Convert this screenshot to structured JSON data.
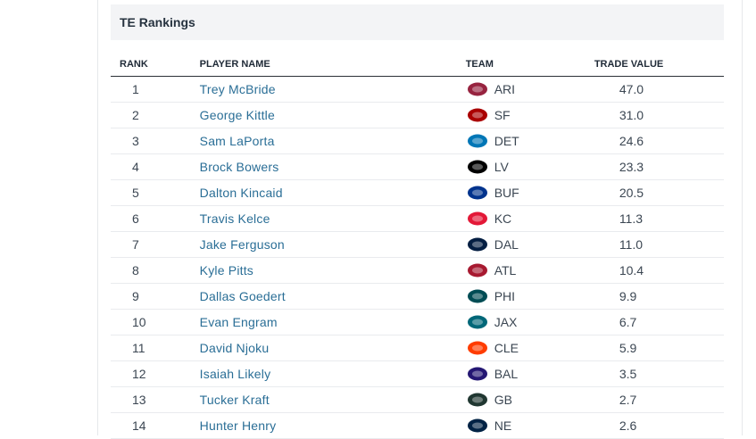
{
  "title": "TE Rankings",
  "columns": {
    "rank": "RANK",
    "player": "PLAYER NAME",
    "team": "TEAM",
    "value": "TRADE VALUE"
  },
  "rows": [
    {
      "rank": "1",
      "player": "Trey McBride",
      "team": "ARI",
      "value": "47.0",
      "logo": "cardinals-logo",
      "color": "#97233f"
    },
    {
      "rank": "2",
      "player": "George Kittle",
      "team": "SF",
      "value": "31.0",
      "logo": "49ers-logo",
      "color": "#aa0000"
    },
    {
      "rank": "3",
      "player": "Sam LaPorta",
      "team": "DET",
      "value": "24.6",
      "logo": "lions-logo",
      "color": "#0076b6"
    },
    {
      "rank": "4",
      "player": "Brock Bowers",
      "team": "LV",
      "value": "23.3",
      "logo": "raiders-logo",
      "color": "#000000"
    },
    {
      "rank": "5",
      "player": "Dalton Kincaid",
      "team": "BUF",
      "value": "20.5",
      "logo": "bills-logo",
      "color": "#00338d"
    },
    {
      "rank": "6",
      "player": "Travis Kelce",
      "team": "KC",
      "value": "11.3",
      "logo": "chiefs-logo",
      "color": "#e31837"
    },
    {
      "rank": "7",
      "player": "Jake Ferguson",
      "team": "DAL",
      "value": "11.0",
      "logo": "cowboys-logo",
      "color": "#041e42"
    },
    {
      "rank": "8",
      "player": "Kyle Pitts",
      "team": "ATL",
      "value": "10.4",
      "logo": "falcons-logo",
      "color": "#a71930"
    },
    {
      "rank": "9",
      "player": "Dallas Goedert",
      "team": "PHI",
      "value": "9.9",
      "logo": "eagles-logo",
      "color": "#004c54"
    },
    {
      "rank": "10",
      "player": "Evan Engram",
      "team": "JAX",
      "value": "6.7",
      "logo": "jaguars-logo",
      "color": "#006778"
    },
    {
      "rank": "11",
      "player": "David Njoku",
      "team": "CLE",
      "value": "5.9",
      "logo": "browns-logo",
      "color": "#ff3c00"
    },
    {
      "rank": "12",
      "player": "Isaiah Likely",
      "team": "BAL",
      "value": "3.5",
      "logo": "ravens-logo",
      "color": "#241773"
    },
    {
      "rank": "13",
      "player": "Tucker Kraft",
      "team": "GB",
      "value": "2.7",
      "logo": "packers-logo",
      "color": "#203731"
    },
    {
      "rank": "14",
      "player": "Hunter Henry",
      "team": "NE",
      "value": "2.6",
      "logo": "patriots-logo",
      "color": "#002244"
    }
  ]
}
